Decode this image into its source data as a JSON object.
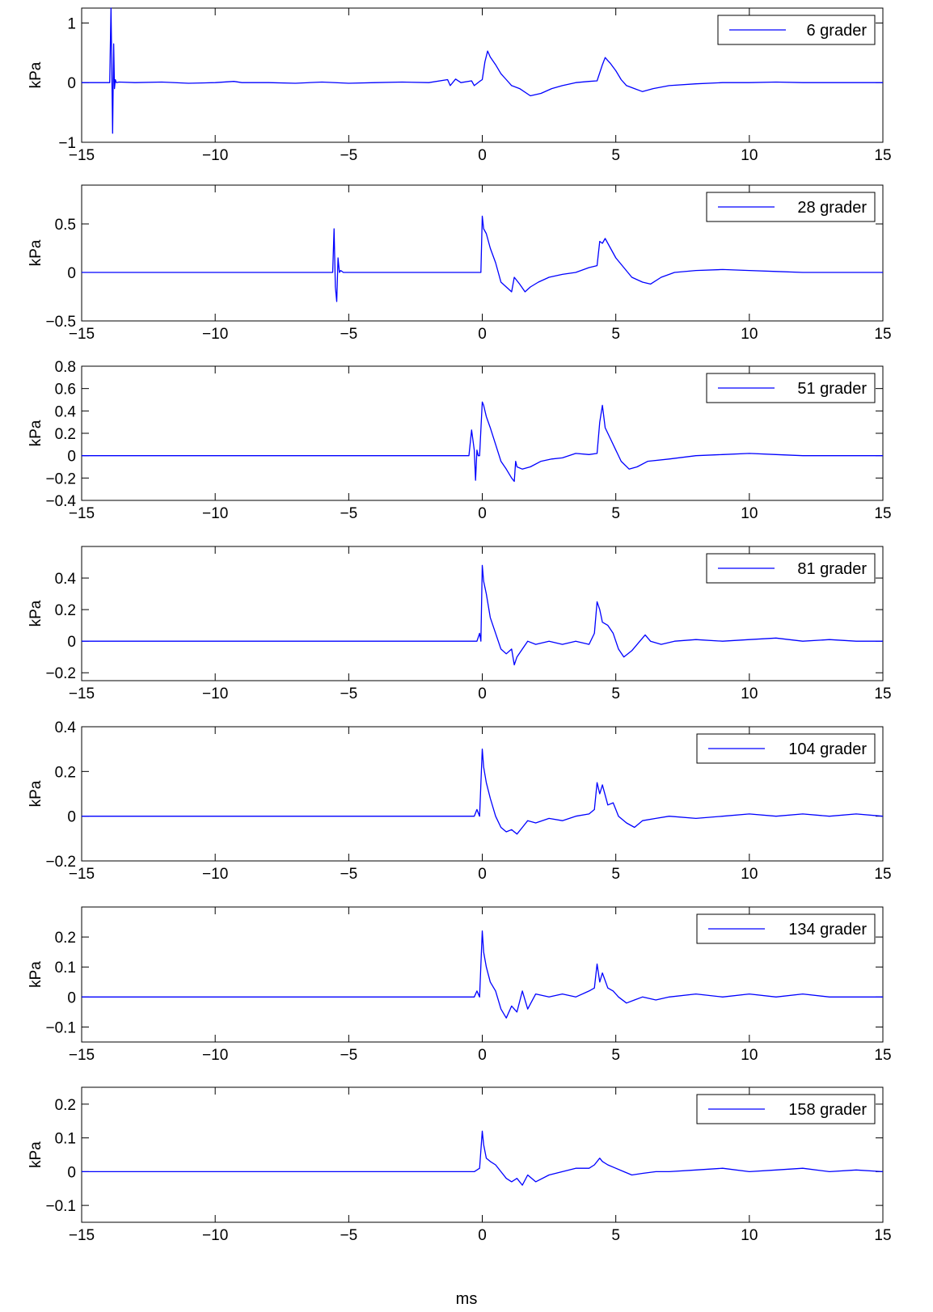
{
  "figure": {
    "xlabel": "ms",
    "line_color": "#0000ff"
  },
  "chart_data": [
    {
      "type": "line",
      "legend": "6 grader",
      "legend_position": "top-right",
      "ylabel": "kPa",
      "xlim": [
        -15,
        15
      ],
      "ylim": [
        -1,
        1.25
      ],
      "xticks": [
        -15,
        -10,
        -5,
        0,
        5,
        10,
        15
      ],
      "yticks": [
        -1,
        0,
        1
      ],
      "ytick_labels": [
        "−1",
        "0",
        "1"
      ],
      "series": [
        {
          "x": [
            -15,
            -13.95,
            -13.9,
            -13.87,
            -13.84,
            -13.8,
            -13.77,
            -13.74,
            -13.7,
            -13.6,
            -13,
            -12,
            -11,
            -10,
            -9.3,
            -9,
            -8,
            -7,
            -6,
            -5,
            -4,
            -3,
            -2,
            -1.3,
            -1.2,
            -1,
            -0.8,
            -0.4,
            -0.3,
            -0.1,
            0,
            0.1,
            0.2,
            0.3,
            0.5,
            0.7,
            0.9,
            1.1,
            1.4,
            1.8,
            2.2,
            2.6,
            3,
            3.5,
            4,
            4.3,
            4.5,
            4.6,
            4.7,
            4.8,
            5,
            5.2,
            5.4,
            5.7,
            6,
            6.4,
            7,
            8,
            9,
            10,
            11,
            12,
            13,
            14,
            15
          ],
          "y": [
            0,
            0,
            1.25,
            0.2,
            -0.85,
            0.65,
            -0.1,
            0.05,
            0,
            0.01,
            0,
            0.01,
            -0.01,
            0,
            0.02,
            0,
            0,
            -0.01,
            0.01,
            -0.01,
            0,
            0.01,
            0,
            0.05,
            -0.05,
            0.06,
            0,
            0.03,
            -0.05,
            0.02,
            0.05,
            0.35,
            0.53,
            0.43,
            0.3,
            0.15,
            0.05,
            -0.05,
            -0.1,
            -0.22,
            -0.18,
            -0.1,
            -0.05,
            0,
            0.02,
            0.03,
            0.3,
            0.42,
            0.37,
            0.32,
            0.2,
            0.05,
            -0.05,
            -0.1,
            -0.15,
            -0.1,
            -0.05,
            -0.02,
            0,
            0,
            0.01,
            0,
            0,
            0,
            0
          ]
        }
      ]
    },
    {
      "type": "line",
      "legend": "28 grader",
      "legend_position": "top-right",
      "ylabel": "kPa",
      "xlim": [
        -15,
        15
      ],
      "ylim": [
        -0.5,
        0.9
      ],
      "xticks": [
        -15,
        -10,
        -5,
        0,
        5,
        10,
        15
      ],
      "yticks": [
        -0.5,
        0,
        0.5
      ],
      "ytick_labels": [
        "−0.5",
        "0",
        "0.5"
      ],
      "series": [
        {
          "x": [
            -15,
            -6,
            -5.6,
            -5.55,
            -5.5,
            -5.45,
            -5.4,
            -5.35,
            -5.3,
            -5.2,
            -5,
            -3,
            -1,
            -0.05,
            0,
            0.05,
            0.15,
            0.3,
            0.5,
            0.7,
            0.9,
            1.1,
            1.2,
            1.4,
            1.6,
            1.8,
            2.1,
            2.5,
            3,
            3.5,
            4,
            4.3,
            4.4,
            4.5,
            4.6,
            4.8,
            5,
            5.3,
            5.6,
            6,
            6.3,
            6.7,
            7.2,
            8,
            9,
            10,
            11,
            12,
            13,
            14,
            15
          ],
          "y": [
            0,
            0,
            0,
            0.45,
            -0.15,
            -0.3,
            0.15,
            0,
            0.02,
            0,
            0,
            0,
            0,
            0,
            0.58,
            0.45,
            0.4,
            0.25,
            0.1,
            -0.1,
            -0.15,
            -0.2,
            -0.05,
            -0.12,
            -0.2,
            -0.15,
            -0.1,
            -0.05,
            -0.02,
            0,
            0.05,
            0.07,
            0.32,
            0.3,
            0.35,
            0.25,
            0.15,
            0.05,
            -0.05,
            -0.1,
            -0.12,
            -0.05,
            0,
            0.02,
            0.03,
            0.02,
            0.01,
            0,
            0,
            0,
            0
          ]
        }
      ]
    },
    {
      "type": "line",
      "legend": "51 grader",
      "legend_position": "top-right",
      "ylabel": "kPa",
      "xlim": [
        -15,
        15
      ],
      "ylim": [
        -0.4,
        0.8
      ],
      "xticks": [
        -15,
        -10,
        -5,
        0,
        5,
        10,
        15
      ],
      "yticks": [
        -0.4,
        -0.2,
        0,
        0.2,
        0.4,
        0.6,
        0.8
      ],
      "ytick_labels": [
        "−0.4",
        "−0.2",
        "0",
        "0.2",
        "0.4",
        "0.6",
        "0.8"
      ],
      "series": [
        {
          "x": [
            -15,
            -5,
            -1,
            -0.5,
            -0.4,
            -0.3,
            -0.25,
            -0.2,
            -0.15,
            -0.1,
            0,
            0.05,
            0.15,
            0.3,
            0.5,
            0.7,
            0.9,
            1.1,
            1.2,
            1.25,
            1.3,
            1.5,
            1.8,
            2.2,
            2.6,
            3,
            3.5,
            4,
            4.3,
            4.4,
            4.5,
            4.6,
            4.8,
            5,
            5.2,
            5.5,
            5.8,
            6.2,
            7,
            8,
            9,
            10,
            11,
            12,
            13,
            14,
            15
          ],
          "y": [
            0,
            0,
            0,
            0,
            0.23,
            0.05,
            -0.22,
            0.05,
            0,
            0,
            0.48,
            0.45,
            0.35,
            0.25,
            0.1,
            -0.05,
            -0.12,
            -0.2,
            -0.23,
            -0.05,
            -0.1,
            -0.12,
            -0.1,
            -0.05,
            -0.03,
            -0.02,
            0.02,
            0.01,
            0.02,
            0.3,
            0.45,
            0.25,
            0.15,
            0.05,
            -0.05,
            -0.12,
            -0.1,
            -0.05,
            -0.03,
            0,
            0.01,
            0.02,
            0.01,
            0,
            0,
            0,
            0
          ]
        }
      ]
    },
    {
      "type": "line",
      "legend": "81 grader",
      "legend_position": "top-right",
      "ylabel": "kPa",
      "xlim": [
        -15,
        15
      ],
      "ylim": [
        -0.25,
        0.6
      ],
      "xticks": [
        -15,
        -10,
        -5,
        0,
        5,
        10,
        15
      ],
      "yticks": [
        -0.2,
        0,
        0.2,
        0.4
      ],
      "ytick_labels": [
        "−0.2",
        "0",
        "0.2",
        "0.4"
      ],
      "series": [
        {
          "x": [
            -15,
            -5,
            -0.2,
            -0.1,
            -0.05,
            0,
            0.05,
            0.15,
            0.3,
            0.5,
            0.7,
            0.9,
            1.1,
            1.2,
            1.3,
            1.5,
            1.7,
            2,
            2.5,
            3,
            3.5,
            4,
            4.2,
            4.3,
            4.4,
            4.5,
            4.7,
            4.9,
            5.1,
            5.3,
            5.6,
            5.9,
            6.1,
            6.3,
            6.7,
            7.2,
            8,
            9,
            10,
            11,
            12,
            13,
            14,
            15
          ],
          "y": [
            0,
            0,
            0,
            0.05,
            0,
            0.48,
            0.38,
            0.3,
            0.15,
            0.05,
            -0.05,
            -0.08,
            -0.05,
            -0.15,
            -0.1,
            -0.05,
            0,
            -0.02,
            0,
            -0.02,
            0,
            -0.02,
            0.05,
            0.25,
            0.2,
            0.12,
            0.1,
            0.05,
            -0.05,
            -0.1,
            -0.06,
            0,
            0.04,
            0,
            -0.02,
            0,
            0.01,
            0,
            0.01,
            0.02,
            0,
            0.01,
            0,
            0
          ]
        }
      ]
    },
    {
      "type": "line",
      "legend": "104 grader",
      "legend_position": "top-right",
      "ylabel": "kPa",
      "xlim": [
        -15,
        15
      ],
      "ylim": [
        -0.2,
        0.4
      ],
      "xticks": [
        -15,
        -10,
        -5,
        0,
        5,
        10,
        15
      ],
      "yticks": [
        -0.2,
        0,
        0.2,
        0.4
      ],
      "ytick_labels": [
        "−0.2",
        "0",
        "0.2",
        "0.4"
      ],
      "series": [
        {
          "x": [
            -15,
            -5,
            -0.3,
            -0.2,
            -0.1,
            0,
            0.05,
            0.15,
            0.3,
            0.5,
            0.7,
            0.9,
            1.1,
            1.3,
            1.5,
            1.7,
            2,
            2.5,
            3,
            3.5,
            4,
            4.2,
            4.3,
            4.4,
            4.5,
            4.7,
            4.9,
            5.1,
            5.4,
            5.7,
            6,
            6.5,
            7,
            8,
            9,
            10,
            11,
            12,
            13,
            14,
            15
          ],
          "y": [
            0,
            0,
            0,
            0.03,
            0,
            0.3,
            0.22,
            0.15,
            0.08,
            0,
            -0.05,
            -0.07,
            -0.06,
            -0.08,
            -0.05,
            -0.02,
            -0.03,
            -0.01,
            -0.02,
            0,
            0.01,
            0.03,
            0.15,
            0.1,
            0.14,
            0.05,
            0.06,
            0,
            -0.03,
            -0.05,
            -0.02,
            -0.01,
            0,
            -0.01,
            0,
            0.01,
            0,
            0.01,
            0,
            0.01,
            0
          ]
        }
      ]
    },
    {
      "type": "line",
      "legend": "134 grader",
      "legend_position": "top-right",
      "ylabel": "kPa",
      "xlim": [
        -15,
        15
      ],
      "ylim": [
        -0.15,
        0.3
      ],
      "xticks": [
        -15,
        -10,
        -5,
        0,
        5,
        10,
        15
      ],
      "yticks": [
        -0.1,
        0,
        0.1,
        0.2
      ],
      "ytick_labels": [
        "−0.1",
        "0",
        "0.1",
        "0.2"
      ],
      "series": [
        {
          "x": [
            -15,
            -5,
            -0.3,
            -0.2,
            -0.1,
            0,
            0.05,
            0.15,
            0.3,
            0.5,
            0.7,
            0.9,
            1.1,
            1.3,
            1.5,
            1.7,
            2,
            2.5,
            3,
            3.5,
            4,
            4.2,
            4.3,
            4.4,
            4.5,
            4.7,
            4.9,
            5.1,
            5.4,
            5.7,
            6,
            6.5,
            7,
            8,
            9,
            10,
            11,
            12,
            13,
            14,
            15
          ],
          "y": [
            0,
            0,
            0,
            0.02,
            0,
            0.22,
            0.15,
            0.1,
            0.05,
            0.02,
            -0.04,
            -0.07,
            -0.03,
            -0.05,
            0.02,
            -0.04,
            0.01,
            0,
            0.01,
            0,
            0.02,
            0.03,
            0.11,
            0.05,
            0.08,
            0.03,
            0.02,
            0,
            -0.02,
            -0.01,
            0,
            -0.01,
            0,
            0.01,
            0,
            0.01,
            0,
            0.01,
            0,
            0,
            0
          ]
        }
      ]
    },
    {
      "type": "line",
      "legend": "158 grader",
      "legend_position": "top-right",
      "ylabel": "kPa",
      "xlim": [
        -15,
        15
      ],
      "ylim": [
        -0.15,
        0.25
      ],
      "xticks": [
        -15,
        -10,
        -5,
        0,
        5,
        10,
        15
      ],
      "yticks": [
        -0.1,
        0,
        0.1,
        0.2
      ],
      "ytick_labels": [
        "−0.1",
        "0",
        "0.1",
        "0.2"
      ],
      "series": [
        {
          "x": [
            -15,
            -5,
            -0.3,
            -0.1,
            0,
            0.05,
            0.15,
            0.3,
            0.5,
            0.7,
            0.9,
            1.1,
            1.3,
            1.5,
            1.7,
            2,
            2.5,
            3,
            3.5,
            4,
            4.2,
            4.4,
            4.5,
            4.7,
            5,
            5.3,
            5.6,
            6,
            6.5,
            7,
            8,
            9,
            10,
            11,
            12,
            13,
            14,
            15
          ],
          "y": [
            0,
            0,
            0,
            0.01,
            0.12,
            0.08,
            0.04,
            0.03,
            0.02,
            0,
            -0.02,
            -0.03,
            -0.02,
            -0.04,
            -0.01,
            -0.03,
            -0.01,
            0,
            0.01,
            0.01,
            0.02,
            0.04,
            0.03,
            0.02,
            0.01,
            0,
            -0.01,
            -0.005,
            0,
            0,
            0.005,
            0.01,
            0,
            0.005,
            0.01,
            0,
            0.005,
            0
          ]
        }
      ]
    }
  ]
}
